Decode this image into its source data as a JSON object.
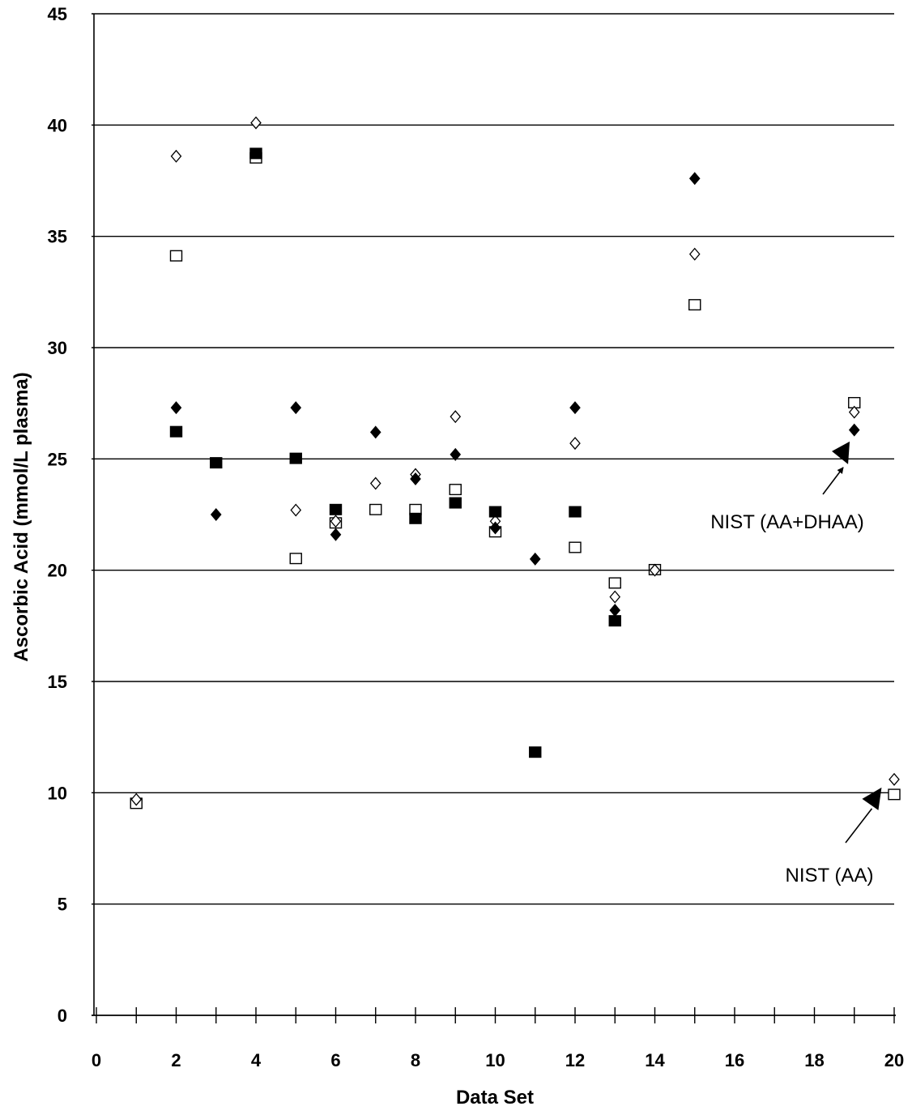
{
  "chart_data": {
    "type": "scatter",
    "xlabel": "Data Set",
    "ylabel": "Ascorbic Acid (mmol/L plasma)",
    "xlim": [
      0,
      20
    ],
    "ylim": [
      0,
      45
    ],
    "x_ticks": [
      0,
      2,
      4,
      6,
      8,
      10,
      12,
      14,
      16,
      18,
      20
    ],
    "y_ticks": [
      0,
      5,
      10,
      15,
      20,
      25,
      30,
      35,
      40,
      45
    ],
    "grid": "horizontal",
    "series": [
      {
        "marker": "filled-diamond",
        "points": [
          [
            2,
            27.3
          ],
          [
            3,
            22.5
          ],
          [
            5,
            27.3
          ],
          [
            6,
            21.6
          ],
          [
            7,
            26.2
          ],
          [
            8,
            24.1
          ],
          [
            9,
            25.2
          ],
          [
            10,
            21.9
          ],
          [
            11,
            20.5
          ],
          [
            12,
            27.3
          ],
          [
            13,
            18.2
          ],
          [
            15,
            37.6
          ],
          [
            19,
            26.3
          ]
        ]
      },
      {
        "marker": "filled-square",
        "points": [
          [
            2,
            26.2
          ],
          [
            3,
            24.8
          ],
          [
            4,
            38.7
          ],
          [
            5,
            25.0
          ],
          [
            6,
            22.7
          ],
          [
            8,
            22.3
          ],
          [
            9,
            23.0
          ],
          [
            10,
            22.6
          ],
          [
            11,
            11.8
          ],
          [
            12,
            22.6
          ],
          [
            13,
            17.7
          ]
        ]
      },
      {
        "marker": "open-diamond",
        "points": [
          [
            1,
            9.7
          ],
          [
            2,
            38.6
          ],
          [
            4,
            40.1
          ],
          [
            5,
            22.7
          ],
          [
            6,
            22.2
          ],
          [
            7,
            23.9
          ],
          [
            8,
            24.3
          ],
          [
            9,
            26.9
          ],
          [
            10,
            22.2
          ],
          [
            12,
            25.7
          ],
          [
            13,
            18.8
          ],
          [
            14,
            20.0
          ],
          [
            15,
            34.2
          ],
          [
            19,
            27.1
          ],
          [
            20,
            10.6
          ]
        ]
      },
      {
        "marker": "open-square",
        "points": [
          [
            1,
            9.5
          ],
          [
            2,
            34.1
          ],
          [
            4,
            38.5
          ],
          [
            5,
            20.5
          ],
          [
            6,
            22.1
          ],
          [
            7,
            22.7
          ],
          [
            8,
            22.7
          ],
          [
            9,
            23.6
          ],
          [
            10,
            21.7
          ],
          [
            12,
            21.0
          ],
          [
            13,
            19.4
          ],
          [
            14,
            20.0
          ],
          [
            15,
            31.9
          ],
          [
            19,
            27.5
          ],
          [
            20,
            9.9
          ]
        ]
      }
    ],
    "annotations": [
      {
        "text": "NIST (AA+DHAA)",
        "target": [
          18.6,
          25.2
        ]
      },
      {
        "text": "NIST (AA)",
        "target": [
          19.4,
          9.8
        ]
      }
    ]
  },
  "colors": {
    "marker": "#000000",
    "grid": "#000000",
    "background": "#ffffff"
  }
}
